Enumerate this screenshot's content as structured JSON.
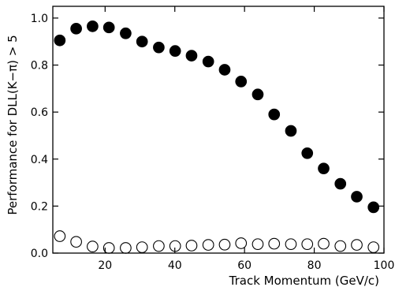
{
  "chart_data": {
    "type": "scatter",
    "title": "",
    "xlabel": "Track Momentum (GeV/c)",
    "ylabel": "Performance for DLL(K−π) > 5",
    "xlim": [
      5,
      100
    ],
    "ylim": [
      0.0,
      1.05
    ],
    "x_ticks": [
      20,
      40,
      60,
      80,
      100
    ],
    "x_tick_labels": [
      "20",
      "40",
      "60",
      "80",
      "100"
    ],
    "y_ticks": [
      0.0,
      0.2,
      0.4,
      0.6,
      0.8,
      1.0
    ],
    "y_tick_labels": [
      "0.0",
      "0.2",
      "0.4",
      "0.6",
      "0.8",
      "1.0"
    ],
    "grid": false,
    "legend": "none",
    "series": [
      {
        "marker": "filled-circle",
        "color": "#000000",
        "x": [
          7.0,
          11.7,
          16.4,
          21.1,
          25.9,
          30.6,
          35.4,
          40.1,
          44.8,
          49.6,
          54.3,
          59.0,
          63.8,
          68.5,
          73.3,
          78.0,
          82.7,
          87.5,
          92.2,
          97.0
        ],
        "y": [
          0.905,
          0.955,
          0.965,
          0.96,
          0.935,
          0.9,
          0.875,
          0.86,
          0.84,
          0.815,
          0.78,
          0.73,
          0.675,
          0.59,
          0.52,
          0.425,
          0.36,
          0.295,
          0.24,
          0.195
        ]
      },
      {
        "marker": "open-circle",
        "color": "#000000",
        "x": [
          7.0,
          11.7,
          16.4,
          21.1,
          25.9,
          30.6,
          35.4,
          40.1,
          44.8,
          49.6,
          54.3,
          59.0,
          63.8,
          68.5,
          73.3,
          78.0,
          82.7,
          87.5,
          92.2,
          97.0
        ],
        "y": [
          0.072,
          0.048,
          0.028,
          0.022,
          0.022,
          0.025,
          0.03,
          0.03,
          0.032,
          0.035,
          0.036,
          0.042,
          0.038,
          0.04,
          0.038,
          0.038,
          0.04,
          0.03,
          0.035,
          0.025
        ]
      }
    ]
  }
}
